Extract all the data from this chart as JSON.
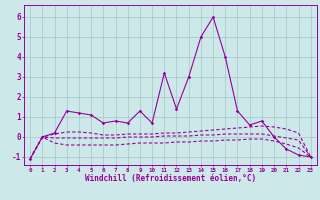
{
  "x": [
    0,
    1,
    2,
    3,
    4,
    5,
    6,
    7,
    8,
    9,
    10,
    11,
    12,
    13,
    14,
    15,
    16,
    17,
    18,
    19,
    20,
    21,
    22,
    23
  ],
  "y_main": [
    -1.1,
    0.0,
    0.2,
    1.3,
    1.2,
    1.1,
    0.7,
    0.8,
    0.7,
    1.3,
    0.7,
    3.2,
    1.4,
    3.0,
    5.0,
    6.0,
    4.0,
    1.3,
    0.6,
    0.8,
    0.0,
    -0.6,
    -0.9,
    -1.0
  ],
  "y_upper": [
    -1.1,
    0.0,
    0.15,
    0.25,
    0.25,
    0.2,
    0.1,
    0.1,
    0.15,
    0.15,
    0.15,
    0.2,
    0.2,
    0.25,
    0.3,
    0.35,
    0.4,
    0.45,
    0.5,
    0.55,
    0.5,
    0.4,
    0.2,
    -1.0
  ],
  "y_mid": [
    -1.1,
    0.0,
    -0.05,
    -0.05,
    -0.05,
    -0.05,
    -0.05,
    -0.05,
    0.0,
    0.0,
    0.0,
    0.05,
    0.05,
    0.05,
    0.1,
    0.1,
    0.15,
    0.15,
    0.15,
    0.15,
    0.05,
    -0.05,
    -0.15,
    -1.0
  ],
  "y_lower": [
    -1.1,
    0.0,
    -0.3,
    -0.4,
    -0.4,
    -0.4,
    -0.4,
    -0.4,
    -0.35,
    -0.3,
    -0.3,
    -0.3,
    -0.25,
    -0.25,
    -0.2,
    -0.2,
    -0.15,
    -0.15,
    -0.1,
    -0.1,
    -0.2,
    -0.35,
    -0.55,
    -1.0
  ],
  "color": "#990099",
  "bg_color": "#cce8e8",
  "grid_color": "#aacccc",
  "xlabel": "Windchill (Refroidissement éolien,°C)",
  "ylim": [
    -1.4,
    6.6
  ],
  "xlim": [
    -0.5,
    23.5
  ],
  "yticks": [
    -1,
    0,
    1,
    2,
    3,
    4,
    5,
    6
  ],
  "xticks": [
    0,
    1,
    2,
    3,
    4,
    5,
    6,
    7,
    8,
    9,
    10,
    11,
    12,
    13,
    14,
    15,
    16,
    17,
    18,
    19,
    20,
    21,
    22,
    23
  ]
}
